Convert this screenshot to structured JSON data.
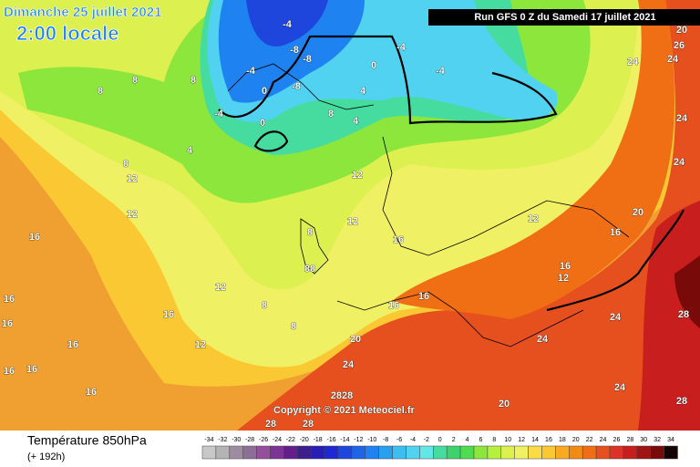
{
  "header": {
    "date": "Dimanche 25 juillet 2021",
    "time": "2:00 locale",
    "run": "Run GFS 0 Z du Samedi 17 juillet 2021"
  },
  "copyright": "Copyright © 2021 Meteociel.fr",
  "legend": {
    "title": "Température 850hPa",
    "subtitle": "(+ 192h)",
    "ticks": [
      -34,
      -32,
      -30,
      -28,
      -26,
      -24,
      -22,
      -20,
      -18,
      -16,
      -14,
      -12,
      -10,
      -8,
      -6,
      -4,
      -2,
      0,
      2,
      4,
      6,
      8,
      10,
      12,
      14,
      16,
      18,
      20,
      22,
      24,
      26,
      28,
      30,
      32,
      34
    ],
    "colors": [
      "#c8c8c8",
      "#b4b4b4",
      "#a08ca0",
      "#8c6e96",
      "#96509b",
      "#7d3296",
      "#641e8c",
      "#3c1e8c",
      "#281eb4",
      "#1e28d2",
      "#1e46dc",
      "#1e64e6",
      "#1e82f0",
      "#28a0f0",
      "#3cbef0",
      "#50d2f0",
      "#64e6e6",
      "#46dca0",
      "#3cd26e",
      "#50dc50",
      "#8ce63c",
      "#b4f03c",
      "#dcf050",
      "#f0f064",
      "#fadc46",
      "#fac832",
      "#faaa1e",
      "#f08c14",
      "#f06e14",
      "#e6501e",
      "#dc3228",
      "#c81e1e",
      "#a01414",
      "#780a0a",
      "#140000"
    ]
  },
  "contour_labels": [
    "8",
    "8",
    "4",
    "-4",
    "-4",
    "0",
    "-8",
    "-4",
    "-8",
    "-8",
    "0",
    "8",
    "4",
    "4",
    "0",
    "-4",
    "-4",
    "12",
    "12",
    "16",
    "12",
    "16",
    "16",
    "16",
    "16",
    "16",
    "12",
    "8",
    "8",
    "88",
    "8",
    "12",
    "16",
    "16",
    "20",
    "24",
    "12",
    "16",
    "12",
    "16",
    "20",
    "24",
    "24",
    "24",
    "28",
    "24",
    "24",
    "20",
    "24",
    "28",
    "2828",
    "28",
    "28",
    "12",
    "8",
    "16",
    "16",
    "16",
    "20",
    "26",
    "24",
    "8"
  ]
}
